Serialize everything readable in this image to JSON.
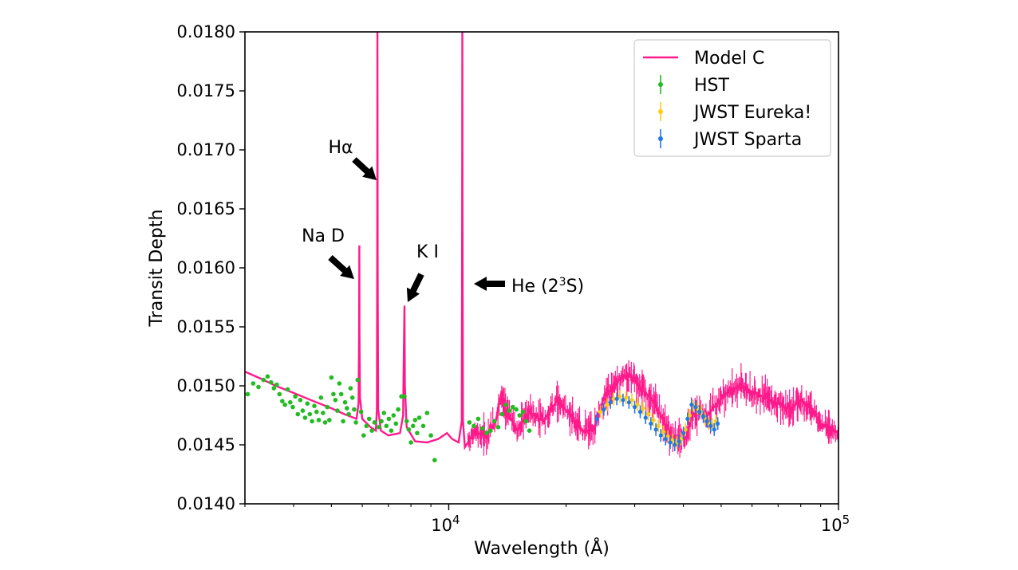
{
  "chart_data": {
    "type": "line",
    "xlabel": "Wavelength (Å)",
    "ylabel": "Transit Depth",
    "xscale": "log",
    "xlim": [
      3000,
      100000
    ],
    "ylim": [
      0.014,
      0.018
    ],
    "x_ticks": [
      {
        "value": 10000,
        "base": "10",
        "exp": "4"
      },
      {
        "value": 100000,
        "base": "10",
        "exp": "5"
      }
    ],
    "y_ticks": [
      "0.0140",
      "0.0145",
      "0.0150",
      "0.0155",
      "0.0160",
      "0.0165",
      "0.0170",
      "0.0175",
      "0.0180"
    ],
    "grid": false,
    "legend_position": "top-right",
    "colors": {
      "model": "#ff1a8c",
      "hst": "#22bb22",
      "eureka": "#ffcc11",
      "sparta": "#2277ee"
    },
    "series": [
      {
        "name": "Model C",
        "kind": "line",
        "x": [
          3000,
          3300,
          3600,
          4000,
          4500,
          5000,
          5400,
          5800,
          5870,
          5890,
          5896,
          5902,
          5920,
          6000,
          6300,
          6500,
          6540,
          6555,
          6563,
          6571,
          6590,
          6700,
          7000,
          7500,
          7640,
          7665,
          7699,
          7720,
          7800,
          8200,
          8800,
          9400,
          9900,
          10200,
          10600,
          10800,
          10825,
          10835,
          10845,
          10880,
          11000,
          11600,
          12500,
          13200,
          13600,
          14000,
          15000,
          16000,
          17500,
          19000,
          20500,
          22000,
          23500,
          25000,
          27000,
          29000,
          31000,
          33000,
          35000,
          37000,
          39000,
          40500,
          42000,
          44000,
          46000,
          48000,
          52000,
          56000,
          60000,
          65000,
          70000,
          75000,
          80000,
          85000,
          90000,
          95000,
          100000
        ],
        "y": [
          0.01512,
          0.01506,
          0.015,
          0.01494,
          0.01487,
          0.01481,
          0.01476,
          0.01472,
          0.01485,
          0.0154,
          0.01619,
          0.01545,
          0.0149,
          0.01472,
          0.01465,
          0.01462,
          0.0148,
          0.016,
          0.018,
          0.016,
          0.0148,
          0.01462,
          0.01458,
          0.0146,
          0.01475,
          0.0152,
          0.01568,
          0.015,
          0.01465,
          0.01453,
          0.01452,
          0.01455,
          0.0146,
          0.01455,
          0.01452,
          0.0147,
          0.0165,
          0.018,
          0.0165,
          0.0147,
          0.01448,
          0.0146,
          0.01458,
          0.0147,
          0.01492,
          0.0148,
          0.01462,
          0.01478,
          0.0147,
          0.01488,
          0.01475,
          0.01462,
          0.01462,
          0.0149,
          0.01504,
          0.0151,
          0.01498,
          0.0149,
          0.01475,
          0.01458,
          0.01455,
          0.01455,
          0.01475,
          0.01478,
          0.01475,
          0.01482,
          0.01495,
          0.015,
          0.01495,
          0.0149,
          0.01485,
          0.0148,
          0.01488,
          0.01482,
          0.01468,
          0.01465,
          0.0146
        ],
        "noise_amplitude": 0.00014
      },
      {
        "name": "HST",
        "kind": "points",
        "x": [
          3050,
          3150,
          3250,
          3350,
          3430,
          3500,
          3560,
          3620,
          3680,
          3740,
          3800,
          3860,
          3920,
          3980,
          4040,
          4100,
          4160,
          4220,
          4280,
          4340,
          4400,
          4460,
          4520,
          4580,
          4640,
          4700,
          4760,
          4820,
          4880,
          4940,
          5000,
          5060,
          5120,
          5180,
          5240,
          5300,
          5360,
          5420,
          5480,
          5540,
          5600,
          5660,
          5720,
          5780,
          5840,
          5960,
          6050,
          6150,
          6250,
          6350,
          6450,
          6620,
          6720,
          6820,
          6920,
          7020,
          7120,
          7220,
          7320,
          7420,
          7560,
          7700,
          7800,
          7900,
          8000,
          8100,
          8200,
          8300,
          8400,
          8600,
          8800,
          9000,
          9200,
          11300,
          11600,
          11900,
          12200,
          12500,
          12800,
          13100,
          13400,
          13700,
          14000,
          14300,
          14600,
          14900,
          15200,
          15500,
          15800,
          16100
        ],
        "y": [
          0.01493,
          0.01502,
          0.01499,
          0.01505,
          0.01508,
          0.01503,
          0.01498,
          0.01501,
          0.01493,
          0.01487,
          0.01484,
          0.01497,
          0.01486,
          0.01482,
          0.01491,
          0.01476,
          0.01488,
          0.01479,
          0.01473,
          0.01485,
          0.01476,
          0.0147,
          0.01483,
          0.01478,
          0.01471,
          0.0149,
          0.01477,
          0.01469,
          0.01482,
          0.01471,
          0.01507,
          0.01493,
          0.01488,
          0.01479,
          0.01502,
          0.01493,
          0.0147,
          0.01486,
          0.01481,
          0.01476,
          0.01498,
          0.0149,
          0.0148,
          0.01469,
          0.01505,
          0.01478,
          0.01458,
          0.01466,
          0.01472,
          0.01462,
          0.01469,
          0.01465,
          0.0147,
          0.01477,
          0.01466,
          0.01472,
          0.01462,
          0.01475,
          0.01468,
          0.0148,
          0.01491,
          0.01491,
          0.0147,
          0.01463,
          0.01452,
          0.01466,
          0.01471,
          0.0146,
          0.01473,
          0.01466,
          0.01477,
          0.01458,
          0.01437,
          0.01469,
          0.01466,
          0.01472,
          0.01464,
          0.0146,
          0.01462,
          0.0147,
          0.01465,
          0.01476,
          0.01484,
          0.01479,
          0.01482,
          0.0148,
          0.01475,
          0.01478,
          0.0147,
          0.01462
        ]
      },
      {
        "name": "JWST Eureka!",
        "kind": "errorbar",
        "x": [
          24500,
          25500,
          26500,
          27500,
          28500,
          29500,
          30500,
          31500,
          32500,
          33500,
          34500,
          35500,
          36500,
          37500,
          38500,
          39500,
          40500,
          41500,
          42500,
          43500,
          44500,
          45500,
          46500,
          47500,
          48500
        ],
        "y": [
          0.01478,
          0.01484,
          0.01489,
          0.01491,
          0.0149,
          0.01488,
          0.01484,
          0.01481,
          0.01476,
          0.01471,
          0.01466,
          0.01461,
          0.01457,
          0.01454,
          0.01452,
          0.01455,
          0.01463,
          0.01475,
          0.01483,
          0.01481,
          0.01478,
          0.01472,
          0.01468,
          0.01467,
          0.0147
        ]
      },
      {
        "name": "JWST Sparta",
        "kind": "errorbar",
        "x": [
          24000,
          25000,
          26000,
          27000,
          28000,
          29000,
          30000,
          31000,
          32000,
          33000,
          34000,
          35000,
          36000,
          37000,
          38000,
          39000,
          40000,
          41000,
          42000,
          43000,
          44000,
          45000,
          46000,
          47000,
          48000,
          49000
        ],
        "y": [
          0.01472,
          0.0148,
          0.01486,
          0.01489,
          0.01488,
          0.01486,
          0.01482,
          0.01478,
          0.01473,
          0.01468,
          0.01463,
          0.01458,
          0.01455,
          0.01452,
          0.0145,
          0.01453,
          0.0146,
          0.01472,
          0.01484,
          0.01482,
          0.01478,
          0.01474,
          0.0147,
          0.01466,
          0.01463,
          0.01468
        ]
      }
    ],
    "annotations": [
      {
        "label": "Na D",
        "text": "Na D",
        "sup": "",
        "tail": "",
        "x": 5896,
        "y": 0.01589,
        "dir": "down-right"
      },
      {
        "label": "Ha",
        "text": "Hα",
        "sup": "",
        "tail": "",
        "x": 6563,
        "y": 0.01672,
        "dir": "down-right"
      },
      {
        "label": "K I",
        "text": "K I",
        "sup": "",
        "tail": "",
        "x": 7699,
        "y": 0.01571,
        "dir": "down-left"
      },
      {
        "label": "He",
        "text": "He (2",
        "sup": "3",
        "tail": "S)",
        "x": 10830,
        "y": 0.01585,
        "dir": "left"
      }
    ]
  }
}
